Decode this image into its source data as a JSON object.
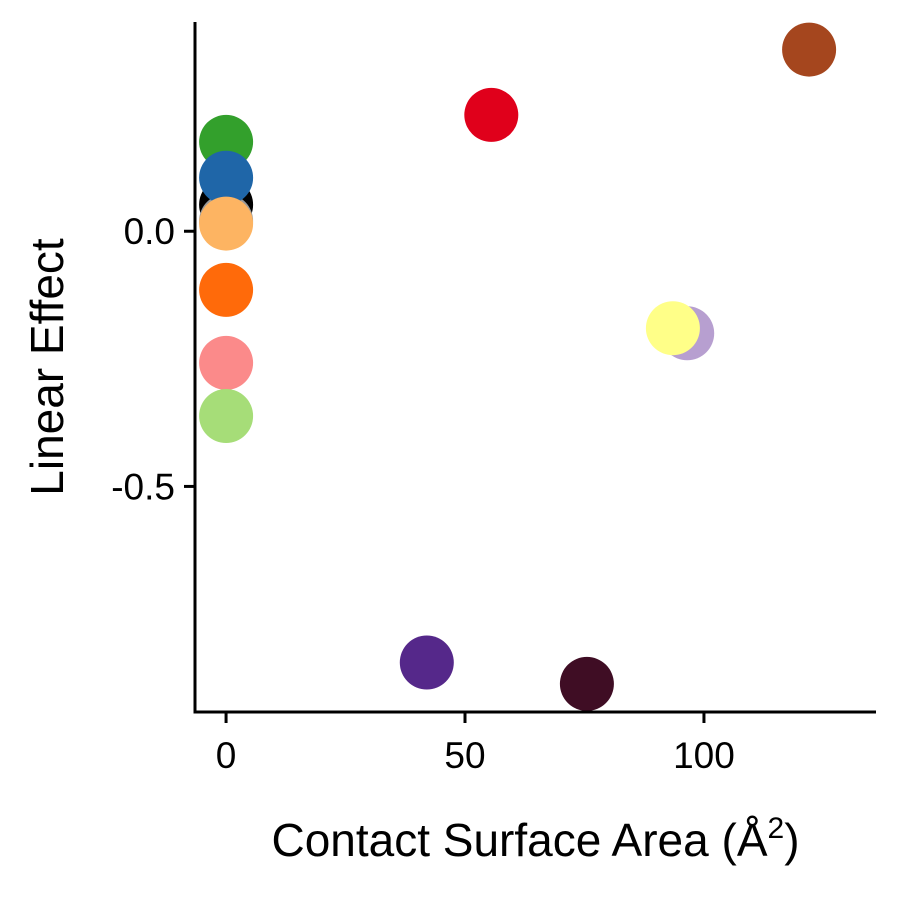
{
  "chart_data": {
    "type": "scatter",
    "title": "",
    "xlabel": "Contact Surface Area (Å",
    "xlabel_superscript": "2",
    "xlabel_suffix": ")",
    "ylabel": "Linear Effect",
    "xlim": [
      -6.5,
      136
    ],
    "ylim": [
      -0.942,
      0.41
    ],
    "x_ticks": [
      0,
      50,
      100
    ],
    "x_tick_labels": [
      "0",
      "50",
      "100"
    ],
    "y_ticks": [
      -0.5,
      0.0
    ],
    "y_tick_labels": [
      "-0.5",
      "0.0"
    ],
    "grid": false,
    "legend": "none",
    "points": [
      {
        "x": 0,
        "y": 0.052,
        "color": "#000000"
      },
      {
        "x": 0,
        "y": 0.02,
        "color": "#999999"
      },
      {
        "x": 0,
        "y": 0.175,
        "color": "#33a02c"
      },
      {
        "x": 0,
        "y": 0.105,
        "color": "#1f66a8"
      },
      {
        "x": 0,
        "y": 0.015,
        "color": "#fdb462"
      },
      {
        "x": 0,
        "y": -0.115,
        "color": "#ff6a0a"
      },
      {
        "x": 0,
        "y": -0.258,
        "color": "#fb8a8a"
      },
      {
        "x": 0,
        "y": -0.362,
        "color": "#a6dd78"
      },
      {
        "x": 55.5,
        "y": 0.228,
        "color": "#e0001b"
      },
      {
        "x": 122,
        "y": 0.356,
        "color": "#a5461e"
      },
      {
        "x": 96.5,
        "y": -0.2,
        "color": "#b79fd0"
      },
      {
        "x": 93.5,
        "y": -0.19,
        "color": "#ffff88"
      },
      {
        "x": 42,
        "y": -0.845,
        "color": "#55288a"
      },
      {
        "x": 75.5,
        "y": -0.887,
        "color": "#3f0d24"
      }
    ]
  }
}
